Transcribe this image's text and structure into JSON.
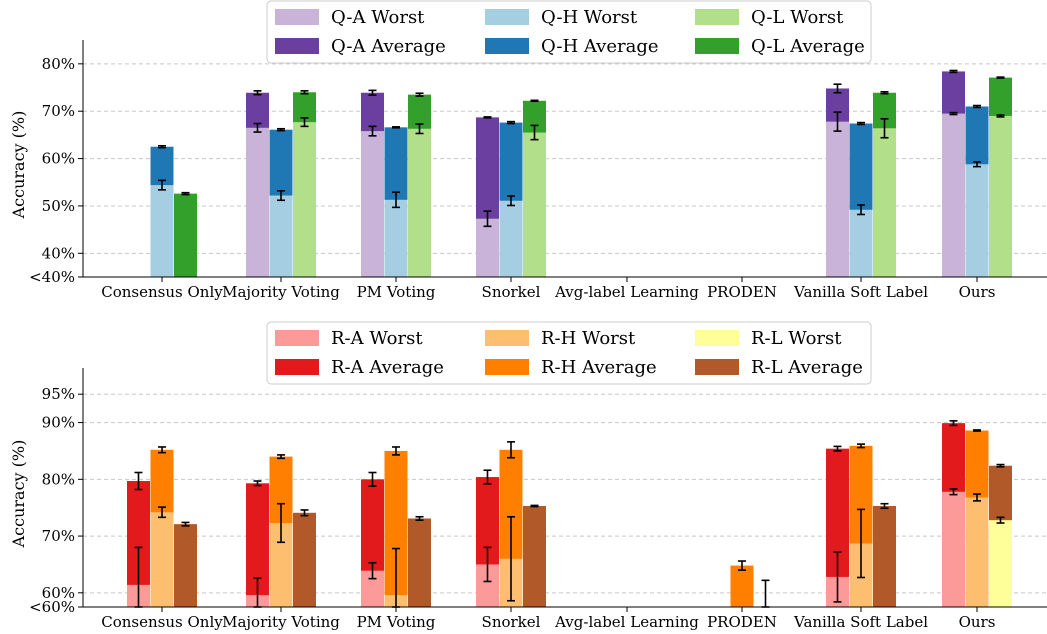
{
  "chart_data": [
    {
      "type": "bar",
      "ylabel": "Accuracy (%)",
      "ylim": [
        35,
        82.5
      ],
      "yticks": [
        "<40%",
        "40%",
        "50%",
        "60%",
        "70%",
        "80%"
      ],
      "ytick_values": [
        35,
        40,
        50,
        60,
        70,
        80
      ],
      "grid": true,
      "legend_position": "top-center",
      "categories": [
        "Consensus Only",
        "Majority Voting",
        "PM Voting",
        "Snorkel",
        "Avg-label Learning",
        "PRODEN",
        "Vanilla Soft Label",
        "Ours"
      ],
      "groups": [
        {
          "worst_name": "Q-A Worst",
          "average_name": "Q-A Average",
          "worst_color": "#c9b3d9",
          "average_color": "#6b3fa0",
          "average": [
            null,
            73.9,
            73.9,
            68.7,
            null,
            null,
            74.8,
            78.4
          ],
          "average_err": [
            0,
            0.4,
            0.5,
            0.1,
            0,
            0,
            0.9,
            0.2
          ],
          "worst": [
            null,
            66.5,
            65.8,
            47.3,
            null,
            null,
            67.8,
            69.5
          ],
          "worst_err": [
            0,
            0.9,
            1.0,
            1.6,
            0,
            0,
            2.0,
            0.2
          ]
        },
        {
          "worst_name": "Q-H Worst",
          "average_name": "Q-H Average",
          "worst_color": "#a6cee3",
          "average_color": "#1f78b4",
          "average": [
            62.5,
            66.1,
            66.6,
            67.6,
            null,
            null,
            67.4,
            71.0
          ],
          "average_err": [
            0.2,
            0.2,
            0.1,
            0.2,
            0,
            0,
            0.2,
            0.2
          ],
          "worst": [
            54.4,
            52.2,
            51.3,
            51.1,
            null,
            null,
            49.2,
            58.8
          ],
          "worst_err": [
            1.0,
            1.0,
            1.6,
            1.0,
            0,
            0,
            1.0,
            0.5
          ]
        },
        {
          "worst_name": "Q-L Worst",
          "average_name": "Q-L Average",
          "worst_color": "#b2df8a",
          "average_color": "#33a02c",
          "average": [
            52.6,
            74.0,
            73.5,
            72.2,
            null,
            null,
            73.9,
            77.1
          ],
          "average_err": [
            0.2,
            0.3,
            0.3,
            0.1,
            0,
            0,
            0.2,
            0.1
          ],
          "worst": [
            35.0,
            67.7,
            66.3,
            65.5,
            null,
            null,
            66.4,
            69.0
          ],
          "worst_err": [
            0,
            0.9,
            1.0,
            1.5,
            0,
            0,
            2.0,
            0.2
          ]
        }
      ]
    },
    {
      "type": "bar",
      "ylabel": "Accuracy (%)",
      "ylim": [
        57.5,
        97.5
      ],
      "yticks": [
        "<60%",
        "60%",
        "70%",
        "80%",
        "90%",
        "95%"
      ],
      "ytick_values": [
        57.5,
        60,
        70,
        80,
        90,
        95
      ],
      "grid": true,
      "legend_position": "top-center",
      "categories": [
        "Consensus Only",
        "Majority Voting",
        "PM Voting",
        "Snorkel",
        "Avg-label Learning",
        "PRODEN",
        "Vanilla Soft Label",
        "Ours"
      ],
      "groups": [
        {
          "worst_name": "R-A Worst",
          "average_name": "R-A Average",
          "worst_color": "#fb9a99",
          "average_color": "#e31a1c",
          "average": [
            79.7,
            79.3,
            80.0,
            80.4,
            null,
            null,
            85.4,
            89.9
          ],
          "average_err": [
            1.5,
            0.4,
            1.2,
            1.2,
            0,
            0,
            0.4,
            0.4
          ],
          "worst": [
            61.4,
            59.6,
            63.9,
            65.0,
            null,
            null,
            62.8,
            77.8
          ],
          "worst_err": [
            6.6,
            3.0,
            1.4,
            3.0,
            0,
            0,
            4.4,
            0.5
          ]
        },
        {
          "worst_name": "R-H Worst",
          "average_name": "R-H Average",
          "worst_color": "#fdbf6f",
          "average_color": "#ff7f00",
          "average": [
            85.2,
            84.0,
            85.0,
            85.2,
            null,
            64.8,
            85.9,
            88.6
          ],
          "average_err": [
            0.5,
            0.3,
            0.7,
            1.4,
            0,
            0.8,
            0.3,
            0.1
          ],
          "worst": [
            74.2,
            72.3,
            59.6,
            66.0,
            null,
            null,
            68.7,
            76.8
          ],
          "worst_err": [
            0.9,
            3.4,
            8.2,
            7.4,
            0,
            0,
            6.0,
            0.6
          ]
        },
        {
          "worst_name": "R-L Worst",
          "average_name": "R-L Average",
          "worst_color": "#ffff99",
          "average_color": "#b15928",
          "average": [
            72.1,
            74.1,
            73.1,
            75.3,
            null,
            57.5,
            75.3,
            82.4
          ],
          "average_err": [
            0.3,
            0.5,
            0.3,
            0.1,
            0,
            4.7,
            0.4,
            0.2
          ],
          "worst": [
            null,
            null,
            null,
            null,
            null,
            null,
            null,
            72.8
          ],
          "worst_err": [
            0,
            0,
            0,
            0,
            0,
            0,
            0,
            0.5
          ]
        }
      ]
    }
  ]
}
